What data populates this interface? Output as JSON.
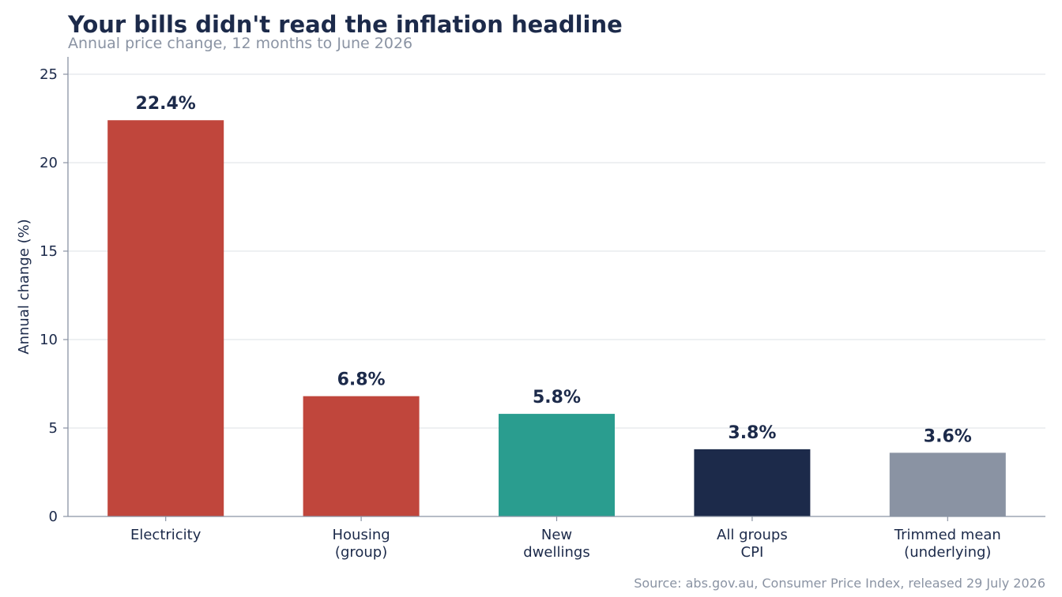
{
  "chart_data": {
    "type": "bar",
    "title": "Your bills didn't read the inflation headline",
    "subtitle": "Annual price change, 12 months to June 2026",
    "ylabel": "Annual change (%)",
    "xlabel": "",
    "categories": [
      [
        "Electricity"
      ],
      [
        "Housing",
        "(group)"
      ],
      [
        "New",
        "dwellings"
      ],
      [
        "All groups",
        "CPI"
      ],
      [
        "Trimmed mean",
        "(underlying)"
      ]
    ],
    "values": [
      22.4,
      6.8,
      5.8,
      3.8,
      3.6
    ],
    "value_labels": [
      "22.4%",
      "6.8%",
      "5.8%",
      "3.8%",
      "3.6%"
    ],
    "colors": [
      "#c0463c",
      "#c0463c",
      "#2a9d8f",
      "#1c2a4a",
      "#8a93a3"
    ],
    "ylim": [
      0,
      26
    ],
    "yticks": [
      0,
      5,
      10,
      15,
      20,
      25
    ],
    "grid": true,
    "legend": "none",
    "source": "Source: abs.gov.au, Consumer Price Index, released 29 July 2026"
  }
}
